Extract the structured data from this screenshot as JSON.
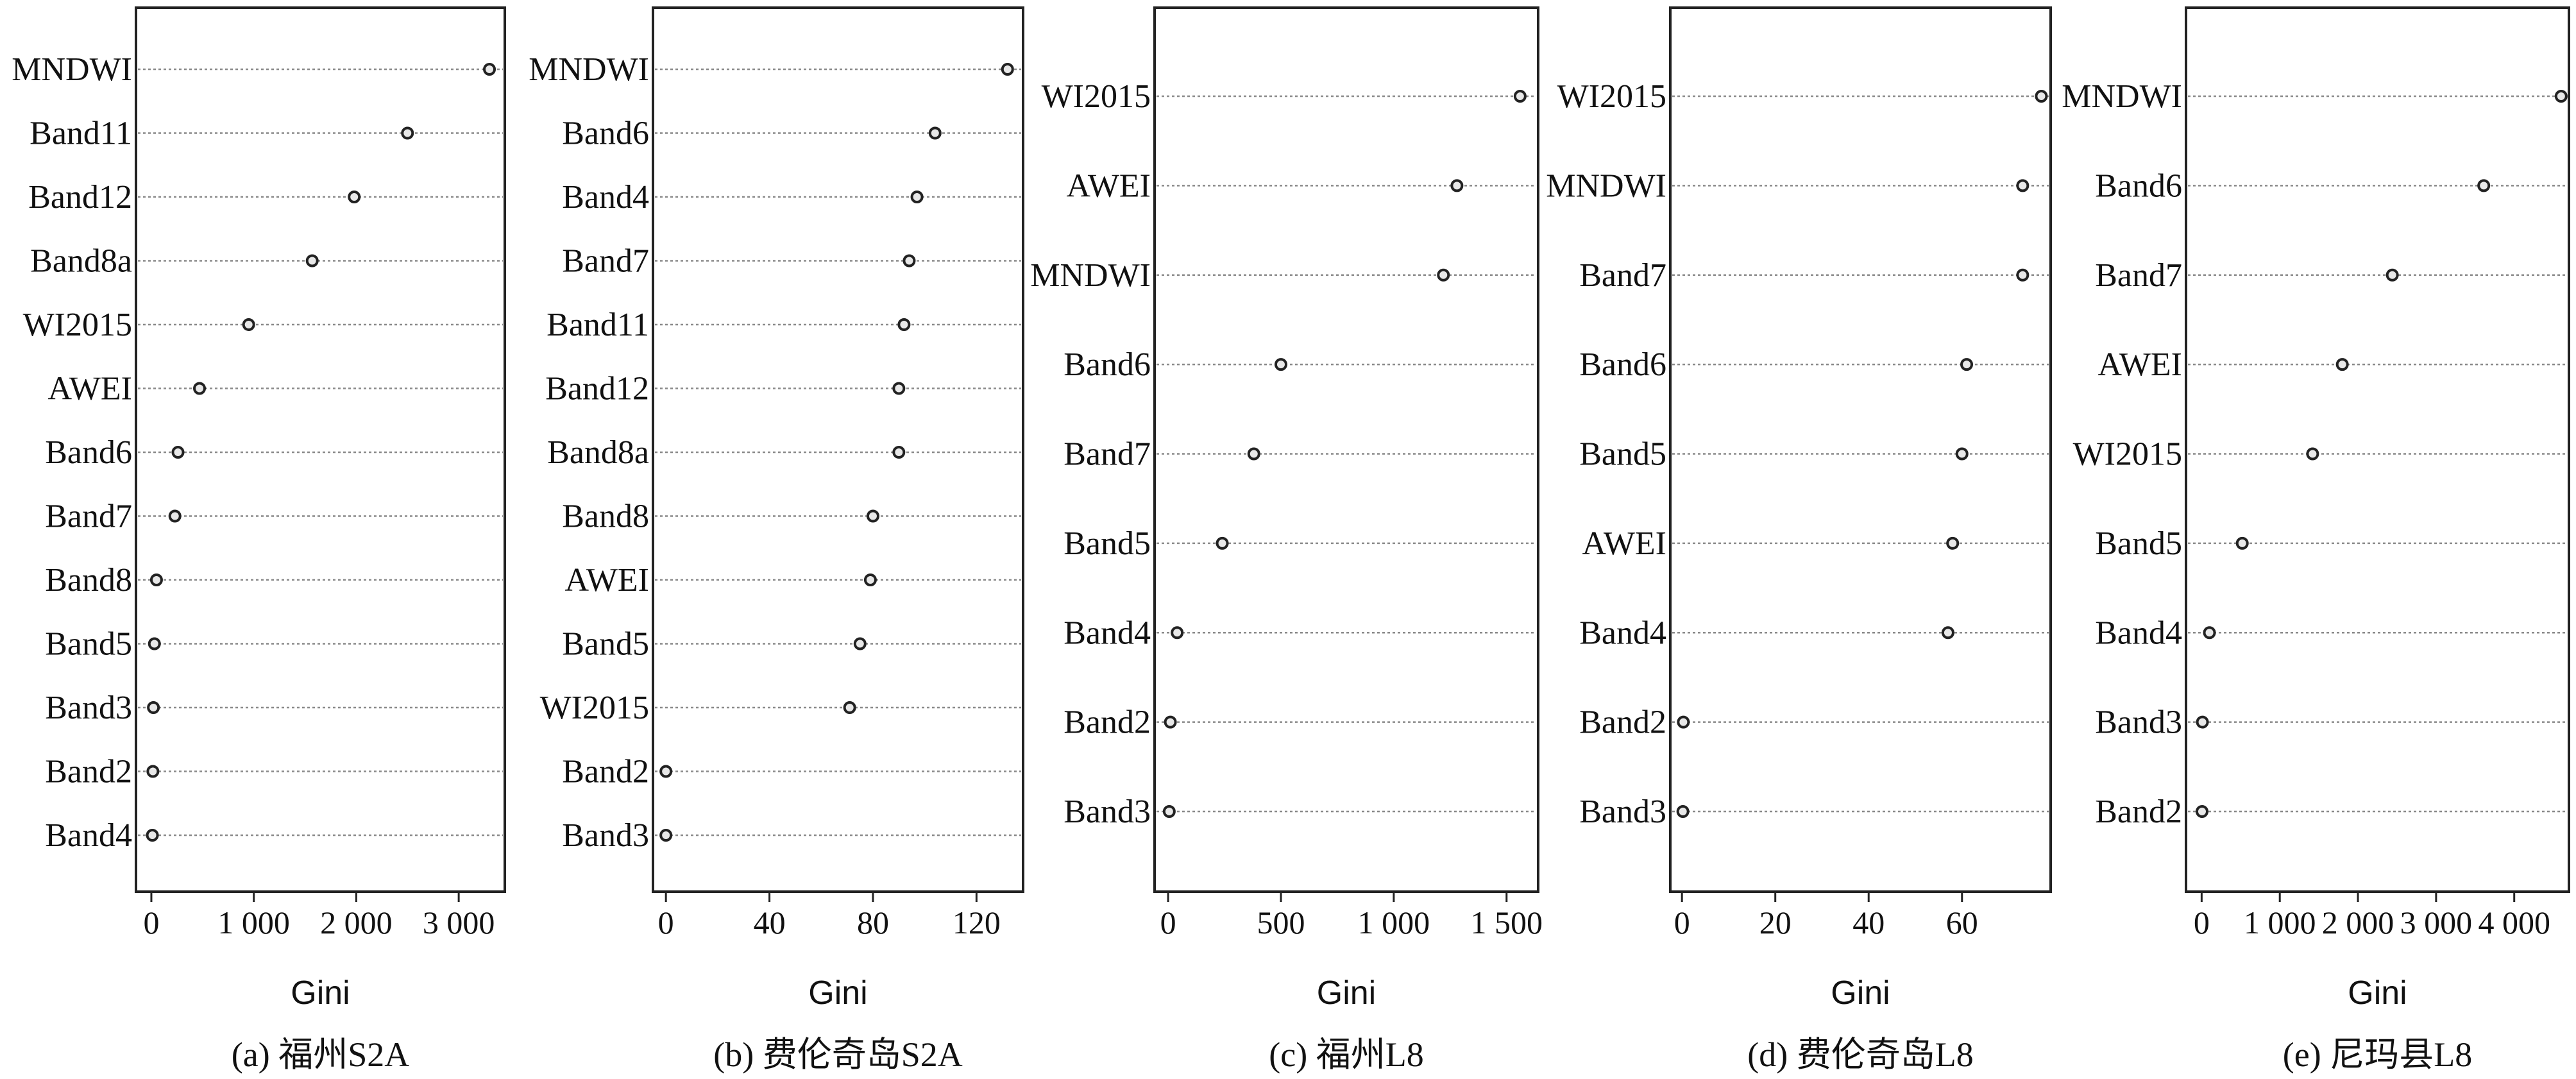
{
  "chart_data": [
    {
      "type": "scatter",
      "caption": "(a) 福州S2A",
      "xlabel": "Gini",
      "xlim": [
        -150,
        3450
      ],
      "xticks": [
        0,
        1000,
        2000,
        3000
      ],
      "xtick_labels": [
        "0",
        "1 000",
        "2 000",
        "3 000"
      ],
      "grid": "horizontal dotted",
      "categories": [
        "MNDWI",
        "Band11",
        "Band12",
        "Band8a",
        "WI2015",
        "AWEI",
        "Band6",
        "Band7",
        "Band8",
        "Band5",
        "Band3",
        "Band2",
        "Band4"
      ],
      "values": [
        3300,
        2500,
        1980,
        1570,
        950,
        470,
        260,
        230,
        50,
        30,
        20,
        15,
        10
      ]
    },
    {
      "type": "scatter",
      "caption": "(b) 费伦奇岛S2A",
      "xlabel": "Gini",
      "xlim": [
        -5,
        138
      ],
      "xticks": [
        0,
        40,
        80,
        120
      ],
      "xtick_labels": [
        "0",
        "40",
        "80",
        "120"
      ],
      "grid": "horizontal dotted",
      "categories": [
        "MNDWI",
        "Band6",
        "Band4",
        "Band7",
        "Band11",
        "Band12",
        "Band8a",
        "Band8",
        "AWEI",
        "Band5",
        "WI2015",
        "Band2",
        "Band3"
      ],
      "values": [
        132,
        104,
        97,
        94,
        92,
        90,
        90,
        80,
        79,
        75,
        71,
        0,
        0
      ]
    },
    {
      "type": "scatter",
      "caption": "(c) 福州L8",
      "xlabel": "Gini",
      "xlim": [
        -60,
        1640
      ],
      "xticks": [
        0,
        500,
        1000,
        1500
      ],
      "xtick_labels": [
        "0",
        "500",
        "1 000",
        "1 500"
      ],
      "grid": "horizontal dotted",
      "categories": [
        "WI2015",
        "AWEI",
        "MNDWI",
        "Band6",
        "Band7",
        "Band5",
        "Band4",
        "Band2",
        "Band3"
      ],
      "values": [
        1560,
        1280,
        1220,
        500,
        380,
        240,
        40,
        10,
        5
      ]
    },
    {
      "type": "scatter",
      "caption": "(d) 费伦奇岛L8",
      "xlabel": "Gini",
      "xlim": [
        -2.5,
        79
      ],
      "xticks": [
        0,
        20,
        40,
        60
      ],
      "xtick_labels": [
        "0",
        "20",
        "40",
        "60"
      ],
      "grid": "horizontal dotted",
      "categories": [
        "WI2015",
        "MNDWI",
        "Band7",
        "Band6",
        "Band5",
        "AWEI",
        "Band4",
        "Band2",
        "Band3"
      ],
      "values": [
        77,
        73,
        73,
        61,
        60,
        58,
        57,
        0.3,
        0.2
      ]
    },
    {
      "type": "scatter",
      "caption": "(e) 尼玛县L8",
      "xlabel": "Gini",
      "xlim": [
        -200,
        4700
      ],
      "xticks": [
        0,
        1000,
        2000,
        3000,
        4000
      ],
      "xtick_labels": [
        "0",
        "1 000",
        "2 000",
        "3 000",
        "4 000"
      ],
      "grid": "horizontal dotted",
      "categories": [
        "MNDWI",
        "Band6",
        "Band7",
        "AWEI",
        "WI2015",
        "Band5",
        "Band4",
        "Band3",
        "Band2"
      ],
      "values": [
        4600,
        3610,
        2440,
        1800,
        1420,
        520,
        100,
        10,
        5
      ]
    }
  ]
}
